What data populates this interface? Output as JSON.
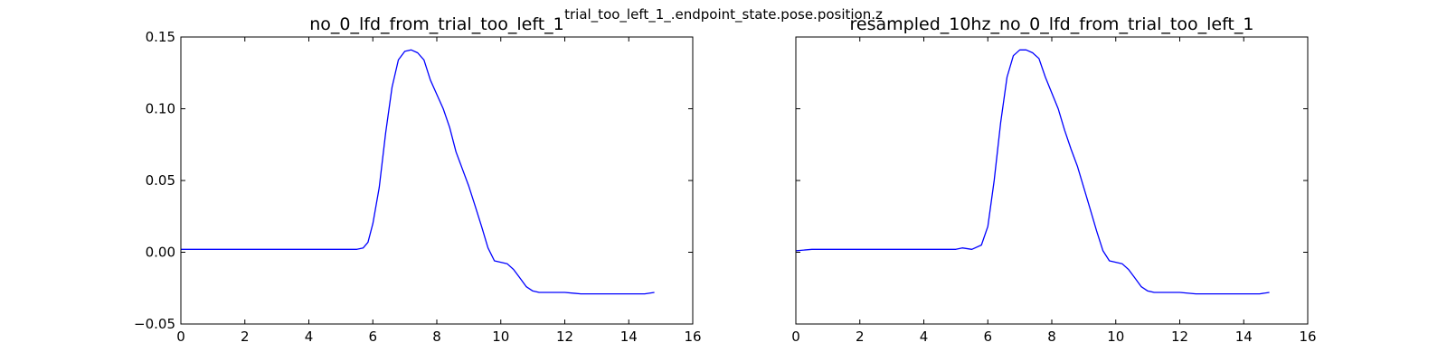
{
  "figure": {
    "suptitle": "trial_too_left_1_.endpoint_state.pose.position.z"
  },
  "chart_data": [
    {
      "type": "line",
      "title": "no_0_lfd_from_trial_too_left_1",
      "xlabel": "",
      "ylabel": "",
      "xlim": [
        0,
        16
      ],
      "ylim": [
        -0.05,
        0.15
      ],
      "x_ticks": [
        "0",
        "2",
        "4",
        "6",
        "8",
        "10",
        "12",
        "14",
        "16"
      ],
      "y_ticks": [
        "0.15",
        "0.10",
        "0.05",
        "0.00",
        "−0.05"
      ],
      "y_tick_values": [
        0.15,
        0.1,
        0.05,
        0.0,
        -0.05
      ],
      "grid": false,
      "color": "#0000ff",
      "series": [
        {
          "x": [
            0,
            0.5,
            1,
            1.5,
            2,
            2.5,
            3,
            3.5,
            4,
            4.5,
            5,
            5.5,
            5.7,
            5.85,
            6.0,
            6.2,
            6.4,
            6.6,
            6.8,
            7.0,
            7.2,
            7.4,
            7.6,
            7.8,
            8.0,
            8.2,
            8.4,
            8.6,
            8.8,
            9.0,
            9.2,
            9.4,
            9.6,
            9.8,
            10.0,
            10.2,
            10.4,
            10.6,
            10.8,
            11.0,
            11.2,
            11.5,
            12.0,
            12.5,
            13.0,
            13.5,
            14.0,
            14.5,
            14.8
          ],
          "y": [
            0.002,
            0.002,
            0.002,
            0.002,
            0.002,
            0.002,
            0.002,
            0.002,
            0.002,
            0.002,
            0.002,
            0.002,
            0.003,
            0.007,
            0.02,
            0.045,
            0.083,
            0.115,
            0.134,
            0.14,
            0.141,
            0.139,
            0.134,
            0.12,
            0.11,
            0.1,
            0.087,
            0.07,
            0.058,
            0.046,
            0.032,
            0.018,
            0.003,
            -0.006,
            -0.007,
            -0.008,
            -0.012,
            -0.018,
            -0.024,
            -0.027,
            -0.028,
            -0.028,
            -0.028,
            -0.029,
            -0.029,
            -0.029,
            -0.029,
            -0.029,
            -0.028
          ]
        }
      ]
    },
    {
      "type": "line",
      "title": "resampled_10hz_no_0_lfd_from_trial_too_left_1",
      "xlabel": "",
      "ylabel": "",
      "xlim": [
        0,
        16
      ],
      "ylim": [
        -0.05,
        0.15
      ],
      "x_ticks": [
        "0",
        "2",
        "4",
        "6",
        "8",
        "10",
        "12",
        "14",
        "16"
      ],
      "y_ticks": [],
      "y_tick_values": [
        0.15,
        0.1,
        0.05,
        0.0,
        -0.05
      ],
      "grid": false,
      "color": "#0000ff",
      "series": [
        {
          "x": [
            0,
            0.5,
            1,
            1.5,
            2,
            2.5,
            3,
            3.5,
            4,
            4.5,
            5,
            5.2,
            5.5,
            5.8,
            6.0,
            6.2,
            6.4,
            6.6,
            6.8,
            7.0,
            7.2,
            7.4,
            7.6,
            7.8,
            8.0,
            8.2,
            8.4,
            8.6,
            8.8,
            9.0,
            9.2,
            9.4,
            9.6,
            9.8,
            10.0,
            10.2,
            10.4,
            10.6,
            10.8,
            11.0,
            11.2,
            11.5,
            12.0,
            12.5,
            13.0,
            13.5,
            14.0,
            14.5,
            14.8
          ],
          "y": [
            0.001,
            0.002,
            0.002,
            0.002,
            0.002,
            0.002,
            0.002,
            0.002,
            0.002,
            0.002,
            0.002,
            0.003,
            0.002,
            0.005,
            0.018,
            0.05,
            0.09,
            0.122,
            0.137,
            0.141,
            0.141,
            0.139,
            0.135,
            0.122,
            0.111,
            0.1,
            0.085,
            0.072,
            0.06,
            0.045,
            0.03,
            0.015,
            0.001,
            -0.006,
            -0.007,
            -0.008,
            -0.012,
            -0.018,
            -0.024,
            -0.027,
            -0.028,
            -0.028,
            -0.028,
            -0.029,
            -0.029,
            -0.029,
            -0.029,
            -0.029,
            -0.028
          ]
        }
      ]
    }
  ]
}
